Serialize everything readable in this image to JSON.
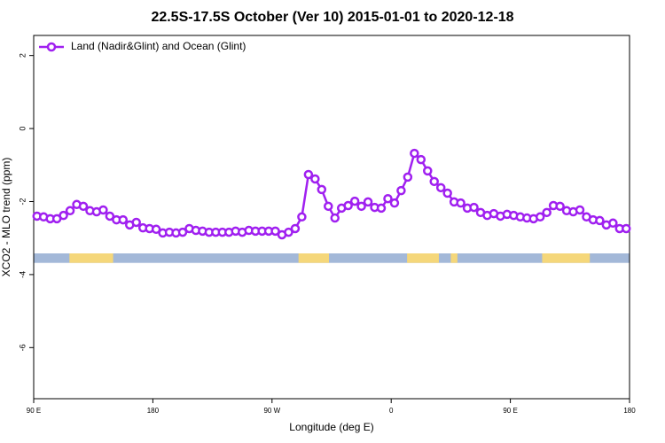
{
  "chart_data": {
    "type": "line",
    "title": "22.5S-17.5S October (Ver 10)   2015-01-01 to 2020-12-18",
    "xlabel": "Longitude (deg E)",
    "ylabel": "XCO2 - MLO trend (ppm)",
    "xlim": [
      90,
      540
    ],
    "ylim": [
      -7.4,
      2.55
    ],
    "xticks": [
      {
        "value": 90,
        "label": "90 E"
      },
      {
        "value": 180,
        "label": "180"
      },
      {
        "value": 270,
        "label": "90 W"
      },
      {
        "value": 360,
        "label": "0"
      },
      {
        "value": 450,
        "label": "90 E"
      },
      {
        "value": 540,
        "label": "180"
      }
    ],
    "yticks": [
      2,
      0,
      -2,
      -4,
      -6
    ],
    "legend": "top-left",
    "x": [
      92.5,
      97.5,
      102.5,
      107.5,
      112.5,
      117.5,
      122.5,
      127.5,
      132.5,
      137.5,
      142.5,
      147.5,
      152.5,
      157.5,
      162.5,
      167.5,
      172.5,
      177.5,
      182.5,
      187.5,
      192.5,
      197.5,
      202.5,
      207.5,
      212.5,
      217.5,
      222.5,
      227.5,
      232.5,
      237.5,
      242.5,
      247.5,
      252.5,
      257.5,
      262.5,
      267.5,
      272.5,
      277.5,
      282.5,
      287.5,
      292.5,
      297.5,
      302.5,
      307.5,
      312.5,
      317.5,
      322.5,
      327.5,
      332.5,
      337.5,
      342.5,
      347.5,
      352.5,
      357.5,
      362.5,
      367.5,
      372.5,
      377.5,
      382.5,
      387.5,
      392.5,
      397.5,
      402.5,
      407.5,
      412.5,
      417.5,
      422.5,
      427.5,
      432.5,
      437.5,
      442.5,
      447.5,
      452.5,
      457.5,
      462.5,
      467.5,
      472.5,
      477.5,
      482.5,
      487.5,
      492.5,
      497.5,
      502.5,
      507.5,
      512.5,
      517.5,
      522.5,
      527.5,
      532.5,
      537.5
    ],
    "series": [
      {
        "name": "Land (Nadir&Glint) and Ocean (Glint)",
        "color": "#a020f0",
        "values": [
          -2.4,
          -2.42,
          -2.47,
          -2.47,
          -2.38,
          -2.25,
          -2.08,
          -2.13,
          -2.25,
          -2.28,
          -2.23,
          -2.4,
          -2.5,
          -2.5,
          -2.64,
          -2.57,
          -2.72,
          -2.74,
          -2.76,
          -2.86,
          -2.84,
          -2.86,
          -2.84,
          -2.74,
          -2.79,
          -2.81,
          -2.84,
          -2.84,
          -2.84,
          -2.84,
          -2.81,
          -2.84,
          -2.79,
          -2.81,
          -2.81,
          -2.81,
          -2.81,
          -2.91,
          -2.84,
          -2.74,
          -2.42,
          -1.26,
          -1.38,
          -1.67,
          -2.13,
          -2.45,
          -2.18,
          -2.11,
          -1.99,
          -2.13,
          -2.01,
          -2.16,
          -2.18,
          -1.92,
          -2.04,
          -1.7,
          -1.33,
          -0.68,
          -0.85,
          -1.16,
          -1.45,
          -1.62,
          -1.77,
          -2.01,
          -2.04,
          -2.18,
          -2.16,
          -2.3,
          -2.38,
          -2.33,
          -2.4,
          -2.35,
          -2.38,
          -2.42,
          -2.45,
          -2.47,
          -2.42,
          -2.3,
          -2.11,
          -2.13,
          -2.25,
          -2.28,
          -2.23,
          -2.42,
          -2.5,
          -2.52,
          -2.64,
          -2.59,
          -2.74,
          -2.74
        ]
      }
    ],
    "surface_strip": {
      "ylim": [
        -3.68,
        -3.42
      ],
      "ocean_color": "#a3b8d8",
      "land_color": "#f5d77a",
      "land": [
        [
          117,
          150
        ],
        [
          290,
          313
        ],
        [
          372,
          396
        ],
        [
          405,
          410
        ],
        [
          474,
          510
        ]
      ]
    }
  }
}
